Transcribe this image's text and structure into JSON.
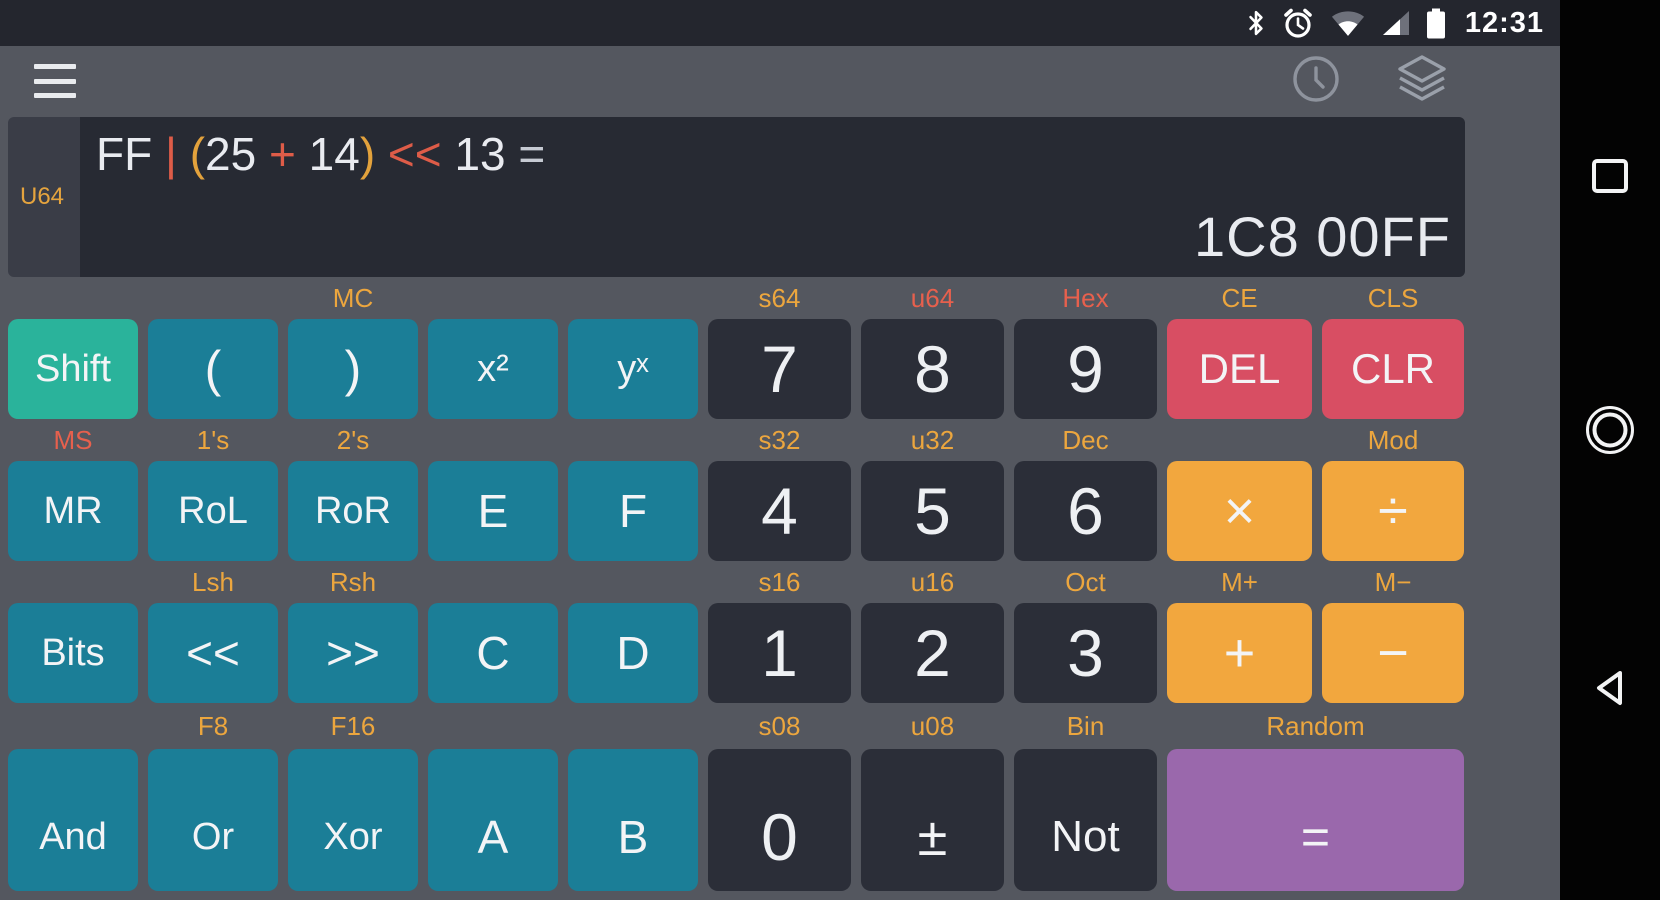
{
  "status_bar": {
    "time": "12:31",
    "icons": [
      "bluetooth-icon",
      "alarm-icon",
      "wifi-icon",
      "signal-icon",
      "battery-icon"
    ]
  },
  "toolbar": {
    "icons": [
      "menu-icon",
      "history-clock-icon",
      "layers-icon"
    ]
  },
  "display": {
    "mode_label": "U64",
    "expression_tokens": [
      {
        "text": "FF",
        "color": "white"
      },
      {
        "text": " | ",
        "color": "coral"
      },
      {
        "text": "(",
        "color": "amber"
      },
      {
        "text": "25",
        "color": "white"
      },
      {
        "text": " + ",
        "color": "coral"
      },
      {
        "text": "14",
        "color": "white"
      },
      {
        "text": ")",
        "color": "amber"
      },
      {
        "text": " << ",
        "color": "coral"
      },
      {
        "text": "13",
        "color": "white"
      },
      {
        "text": " =",
        "color": "muted"
      }
    ],
    "result": "1C8 00FF"
  },
  "colors": {
    "background": "#54575f",
    "display_bg": "#272a33",
    "key_dark": "#2b2e38",
    "key_teal": "#1b7e97",
    "key_green": "#2ab39b",
    "key_red": "#d84e63",
    "key_amber": "#f2a73e",
    "key_purple": "#9a68ac",
    "hint_normal": "#eca63e",
    "hint_active": "#e7604d"
  },
  "keypad": {
    "rows": [
      {
        "hints": [
          {
            "text": "MC",
            "col": 3
          },
          {
            "text": "s64",
            "col": 6
          },
          {
            "text": "u64",
            "col": 7,
            "active": true
          },
          {
            "text": "Hex",
            "col": 8,
            "active": true
          },
          {
            "text": "CE",
            "col": 9
          },
          {
            "text": "CLS",
            "col": 10
          }
        ],
        "keys": [
          {
            "label": "Shift",
            "name": "shift",
            "style": "green"
          },
          {
            "label": "(",
            "name": "open-paren",
            "style": "teal paren"
          },
          {
            "label": ")",
            "name": "close-paren",
            "style": "teal paren"
          },
          {
            "label": "x²",
            "name": "x-squared",
            "style": "teal"
          },
          {
            "label": "yˣ",
            "name": "y-power-x",
            "style": "teal"
          },
          {
            "label": "7",
            "name": "7",
            "style": "dark num"
          },
          {
            "label": "8",
            "name": "8",
            "style": "dark num"
          },
          {
            "label": "9",
            "name": "9",
            "style": "dark num"
          },
          {
            "label": "DEL",
            "name": "del",
            "style": "red"
          },
          {
            "label": "CLR",
            "name": "clr",
            "style": "red"
          }
        ]
      },
      {
        "hints": [
          {
            "text": "MS",
            "col": 1,
            "active": true
          },
          {
            "text": "1's",
            "col": 2
          },
          {
            "text": "2's",
            "col": 3
          },
          {
            "text": "s32",
            "col": 6
          },
          {
            "text": "u32",
            "col": 7
          },
          {
            "text": "Dec",
            "col": 8
          },
          {
            "text": "Mod",
            "col": 10
          }
        ],
        "keys": [
          {
            "label": "MR",
            "name": "mr",
            "style": "teal"
          },
          {
            "label": "RoL",
            "name": "rol",
            "style": "teal"
          },
          {
            "label": "RoR",
            "name": "ror",
            "style": "teal"
          },
          {
            "label": "E",
            "name": "e",
            "style": "teal letter"
          },
          {
            "label": "F",
            "name": "f",
            "style": "teal letter"
          },
          {
            "label": "4",
            "name": "4",
            "style": "dark num"
          },
          {
            "label": "5",
            "name": "5",
            "style": "dark num"
          },
          {
            "label": "6",
            "name": "6",
            "style": "dark num"
          },
          {
            "label": "×",
            "name": "multiply",
            "style": "amber op"
          },
          {
            "label": "÷",
            "name": "divide",
            "style": "amber op"
          }
        ]
      },
      {
        "hints": [
          {
            "text": "Lsh",
            "col": 2
          },
          {
            "text": "Rsh",
            "col": 3
          },
          {
            "text": "s16",
            "col": 6
          },
          {
            "text": "u16",
            "col": 7
          },
          {
            "text": "Oct",
            "col": 8
          },
          {
            "text": "M+",
            "col": 9
          },
          {
            "text": "M−",
            "col": 10
          }
        ],
        "keys": [
          {
            "label": "Bits",
            "name": "bits",
            "style": "teal"
          },
          {
            "label": "<<",
            "name": "shift-left",
            "style": "teal letter"
          },
          {
            "label": ">>",
            "name": "shift-right",
            "style": "teal letter"
          },
          {
            "label": "C",
            "name": "c",
            "style": "teal letter"
          },
          {
            "label": "D",
            "name": "d",
            "style": "teal letter"
          },
          {
            "label": "1",
            "name": "1",
            "style": "dark num"
          },
          {
            "label": "2",
            "name": "2",
            "style": "dark num"
          },
          {
            "label": "3",
            "name": "3",
            "style": "dark num"
          },
          {
            "label": "+",
            "name": "add",
            "style": "amber op"
          },
          {
            "label": "−",
            "name": "subtract",
            "style": "amber op"
          }
        ]
      },
      {
        "hints": [
          {
            "text": "F8",
            "col": 2
          },
          {
            "text": "F16",
            "col": 3
          },
          {
            "text": "s08",
            "col": 6
          },
          {
            "text": "u08",
            "col": 7
          },
          {
            "text": "Bin",
            "col": 8
          },
          {
            "text": "Random",
            "col": 9,
            "span": 2
          }
        ],
        "keys": [
          {
            "label": "And",
            "name": "and",
            "style": "teal"
          },
          {
            "label": "Or",
            "name": "or",
            "style": "teal"
          },
          {
            "label": "Xor",
            "name": "xor",
            "style": "teal"
          },
          {
            "label": "A",
            "name": "a",
            "style": "teal letter"
          },
          {
            "label": "B",
            "name": "b",
            "style": "teal letter"
          },
          {
            "label": "0",
            "name": "0",
            "style": "dark num"
          },
          {
            "label": "±",
            "name": "plus-minus",
            "style": "dark sym"
          },
          {
            "label": "Not",
            "name": "not",
            "style": "dark word"
          },
          {
            "label": "=",
            "name": "equals",
            "style": "purple",
            "span": 2
          }
        ]
      }
    ]
  },
  "nav_bar": {
    "icons": [
      "recents-icon",
      "home-icon",
      "back-icon"
    ]
  }
}
